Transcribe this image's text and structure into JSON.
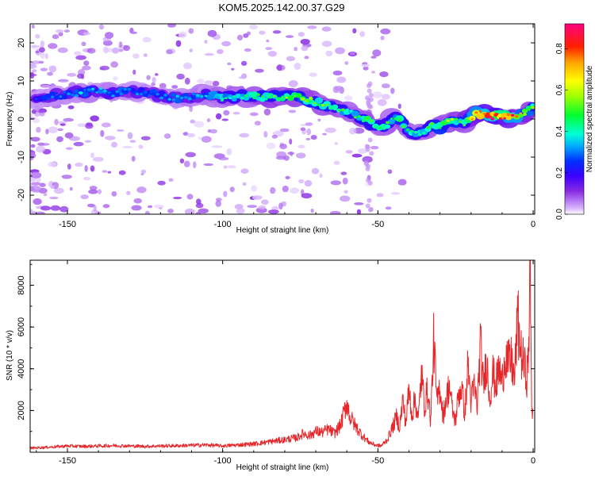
{
  "page": {
    "title": "KOM5.2025.142.00.37.G29"
  },
  "chart_data": [
    {
      "type": "heatmap",
      "title": "KOM5.2025.142.00.37.G29",
      "xlabel": "Height of straight line (km)",
      "ylabel": "Frequency (Hz)",
      "xlim": [
        -162,
        0.5
      ],
      "ylim": [
        -25,
        25
      ],
      "xticks": [
        -150,
        -100,
        -50,
        0
      ],
      "yticks": [
        -20,
        -10,
        0,
        10,
        20
      ],
      "colorbar": {
        "label": "Normalized spectral amplitude",
        "range": [
          0,
          0.92
        ],
        "ticks": [
          0.0,
          0.2,
          0.4,
          0.6,
          0.8
        ]
      },
      "ridge": {
        "x": [
          -160,
          -150,
          -145,
          -140,
          -135,
          -130,
          -125,
          -120,
          -115,
          -110,
          -105,
          -100,
          -95,
          -90,
          -85,
          -80,
          -75,
          -70,
          -65,
          -60,
          -55,
          -52,
          -50,
          -47,
          -45,
          -42,
          -40,
          -37,
          -35,
          -32,
          -30,
          -28,
          -25,
          -22,
          -20,
          -18,
          -15,
          -12,
          -10,
          -8,
          -5,
          -3,
          0
        ],
        "y": [
          5.5,
          6.5,
          7,
          7.5,
          6.5,
          7.5,
          7,
          6,
          5.5,
          6,
          6.5,
          5.5,
          6,
          6,
          5.5,
          6,
          5.5,
          4.5,
          3,
          2,
          0,
          -1,
          -2,
          -1.5,
          0.5,
          -1,
          -3.5,
          -4,
          -3,
          -1.5,
          -2,
          -1,
          -0.5,
          -1,
          0.5,
          1.5,
          1,
          0.5,
          0.5,
          0.5,
          0.5,
          1.5,
          3
        ],
        "amplitude": [
          0.25,
          0.3,
          0.35,
          0.32,
          0.35,
          0.28,
          0.3,
          0.3,
          0.32,
          0.35,
          0.32,
          0.4,
          0.42,
          0.45,
          0.5,
          0.52,
          0.55,
          0.5,
          0.48,
          0.45,
          0.45,
          0.5,
          0.48,
          0.45,
          0.42,
          0.5,
          0.42,
          0.45,
          0.45,
          0.48,
          0.5,
          0.55,
          0.5,
          0.5,
          0.7,
          0.8,
          0.88,
          0.9,
          0.88,
          0.85,
          0.7,
          0.6,
          0.55
        ]
      }
    },
    {
      "type": "line",
      "xlabel": "Height of straight line (km)",
      "ylabel": "SNR (10 * v/v)",
      "xlim": [
        -162,
        0.5
      ],
      "ylim": [
        0,
        9200
      ],
      "xticks": [
        -150,
        -100,
        -50,
        0
      ],
      "yticks": [
        2000,
        4000,
        6000,
        8000
      ],
      "color": "#e8262a",
      "series": [
        {
          "x": [
            -162,
            -155,
            -150,
            -145,
            -140,
            -135,
            -130,
            -125,
            -120,
            -115,
            -110,
            -105,
            -100,
            -95,
            -90,
            -85,
            -80,
            -78,
            -76,
            -74,
            -72,
            -70,
            -68,
            -66,
            -64,
            -62,
            -60,
            -59,
            -57,
            -55,
            -53,
            -51,
            -49,
            -47,
            -45,
            -44,
            -43,
            -42,
            -41,
            -40,
            -39,
            -38,
            -37,
            -36,
            -35,
            -34,
            -33,
            -32,
            -31,
            -30,
            -29,
            -28,
            -27,
            -26,
            -25,
            -24,
            -23,
            -22,
            -21,
            -20,
            -19,
            -18,
            -17,
            -16,
            -15,
            -14,
            -13,
            -12,
            -11,
            -10,
            -9,
            -8,
            -7,
            -6,
            -5,
            -4,
            -3,
            -2,
            -1.5,
            -1,
            -0.5,
            0
          ],
          "y": [
            200,
            250,
            300,
            280,
            300,
            320,
            300,
            280,
            300,
            310,
            330,
            350,
            300,
            350,
            400,
            500,
            600,
            650,
            700,
            900,
            800,
            1000,
            950,
            1100,
            900,
            1300,
            2400,
            1700,
            1200,
            800,
            500,
            350,
            300,
            600,
            1300,
            1700,
            1200,
            2500,
            1400,
            3000,
            1800,
            2600,
            1500,
            3800,
            2200,
            3000,
            1500,
            5400,
            2300,
            3200,
            1700,
            2600,
            3200,
            2000,
            1500,
            2800,
            3100,
            1800,
            4200,
            2400,
            3200,
            2200,
            5200,
            3100,
            4500,
            2600,
            3800,
            3200,
            4000,
            3300,
            4800,
            4200,
            4400,
            3500,
            6400,
            4800,
            4200,
            3600,
            4500,
            9200,
            2200,
            1900
          ]
        }
      ]
    }
  ]
}
